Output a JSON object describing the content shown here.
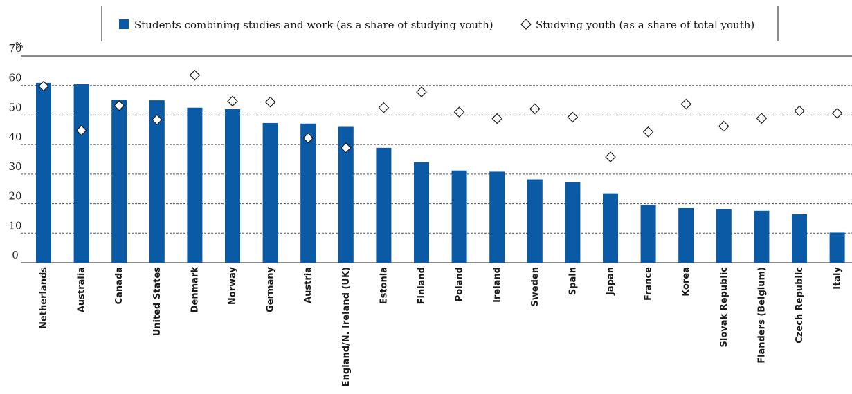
{
  "chart_data": {
    "type": "bar",
    "unit_label": "%",
    "ylim": [
      0,
      70
    ],
    "yticks": [
      "70",
      "60",
      "50",
      "40",
      "30",
      "20",
      "10",
      "0"
    ],
    "grid": true,
    "legend_position": "top",
    "colors": {
      "bar": "#0b5aa6",
      "marker_fill": "#ffffff",
      "marker_stroke": "#1a1a1a",
      "grid": "#555555"
    },
    "categories": [
      "Netherlands",
      "Australia",
      "Canada",
      "United States",
      "Denmark",
      "Norway",
      "Germany",
      "Austria",
      "England/N. Ireland (UK)",
      "Estonia",
      "Finland",
      "Poland",
      "Ireland",
      "Sweden",
      "Spain",
      "Japan",
      "France",
      "Korea",
      "Slovak Republic",
      "Flanders (Belgium)",
      "Czech Republic",
      "Italy"
    ],
    "series": [
      {
        "name": "Students combining studies and work (as a share of studying youth)",
        "kind": "bar",
        "values": [
          60.9,
          60.4,
          55.1,
          55.0,
          52.5,
          52.0,
          47.3,
          47.1,
          46.0,
          38.9,
          34.0,
          31.2,
          30.8,
          28.2,
          27.2,
          23.5,
          19.5,
          18.5,
          18.1,
          17.6,
          16.4,
          10.2
        ]
      },
      {
        "name": "Studying youth (as a share of total youth)",
        "kind": "marker",
        "values": [
          59.8,
          44.8,
          53.2,
          48.4,
          63.5,
          54.7,
          54.4,
          42.2,
          38.9,
          52.5,
          57.8,
          51.0,
          48.8,
          52.1,
          49.3,
          35.8,
          44.3,
          53.7,
          46.2,
          48.9,
          51.4,
          50.6
        ]
      }
    ]
  }
}
